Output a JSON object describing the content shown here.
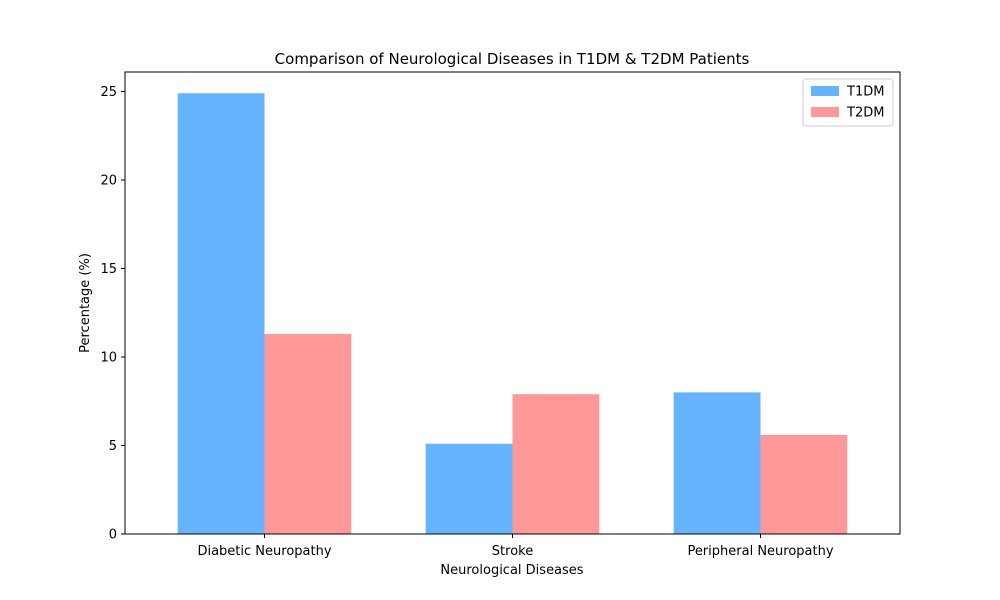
{
  "chart_data": {
    "type": "bar",
    "title": "Comparison of Neurological Diseases in T1DM & T2DM Patients",
    "xlabel": "Neurological Diseases",
    "ylabel": "Percentage (%)",
    "categories": [
      "Diabetic Neuropathy",
      "Stroke",
      "Peripheral Neuropathy"
    ],
    "series": [
      {
        "name": "T1DM",
        "color": "#66b3ff",
        "values": [
          24.9,
          5.1,
          8.0
        ]
      },
      {
        "name": "T2DM",
        "color": "#ff9999",
        "values": [
          11.3,
          7.9,
          5.6
        ]
      }
    ],
    "ylim": [
      0,
      26.1
    ],
    "yticks": [
      0,
      5,
      10,
      15,
      20,
      25
    ],
    "grid": false,
    "legend_position": "top-right"
  }
}
